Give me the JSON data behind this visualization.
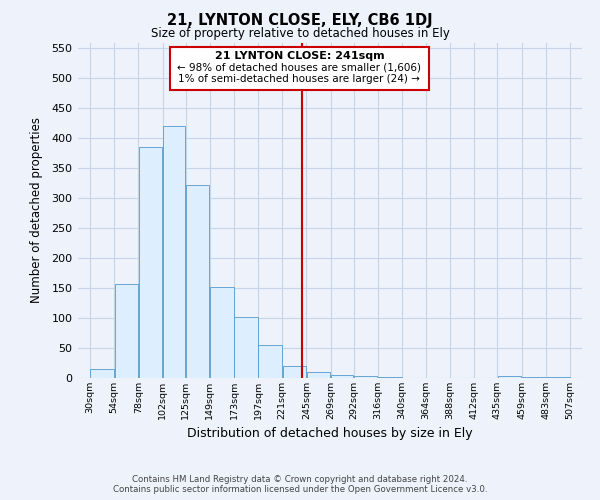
{
  "title": "21, LYNTON CLOSE, ELY, CB6 1DJ",
  "subtitle": "Size of property relative to detached houses in Ely",
  "xlabel": "Distribution of detached houses by size in Ely",
  "ylabel": "Number of detached properties",
  "footer_line1": "Contains HM Land Registry data © Crown copyright and database right 2024.",
  "footer_line2": "Contains public sector information licensed under the Open Government Licence v3.0.",
  "annotation_line1": "21 LYNTON CLOSE: 241sqm",
  "annotation_line2": "← 98% of detached houses are smaller (1,606)",
  "annotation_line3": "1% of semi-detached houses are larger (24) →",
  "bar_left_edges": [
    30,
    54,
    78,
    102,
    125,
    149,
    173,
    197,
    221,
    245,
    269,
    292,
    316,
    340,
    364,
    388,
    412,
    435,
    459,
    483
  ],
  "bar_widths": [
    24,
    24,
    24,
    23,
    24,
    24,
    24,
    24,
    24,
    24,
    23,
    24,
    24,
    24,
    24,
    24,
    23,
    24,
    24,
    24
  ],
  "bar_heights": [
    15,
    157,
    385,
    420,
    322,
    151,
    101,
    55,
    20,
    10,
    5,
    2,
    1,
    0,
    0,
    0,
    0,
    2,
    1,
    1
  ],
  "bar_color": "#ddeeff",
  "bar_edgecolor": "#5599cc",
  "vline_x": 241,
  "vline_color": "#cc0000",
  "ylim": [
    0,
    560
  ],
  "yticks": [
    0,
    50,
    100,
    150,
    200,
    250,
    300,
    350,
    400,
    450,
    500,
    550
  ],
  "xtick_labels": [
    "30sqm",
    "54sqm",
    "78sqm",
    "102sqm",
    "125sqm",
    "149sqm",
    "173sqm",
    "197sqm",
    "221sqm",
    "245sqm",
    "269sqm",
    "292sqm",
    "316sqm",
    "340sqm",
    "364sqm",
    "388sqm",
    "412sqm",
    "435sqm",
    "459sqm",
    "483sqm",
    "507sqm"
  ],
  "xtick_positions": [
    30,
    54,
    78,
    102,
    125,
    149,
    173,
    197,
    221,
    245,
    269,
    292,
    316,
    340,
    364,
    388,
    412,
    435,
    459,
    483,
    507
  ],
  "grid_color": "#c8d4e8",
  "background_color": "#edf2fb",
  "box_facecolor": "#ffffff",
  "box_edgecolor": "#cc0000"
}
